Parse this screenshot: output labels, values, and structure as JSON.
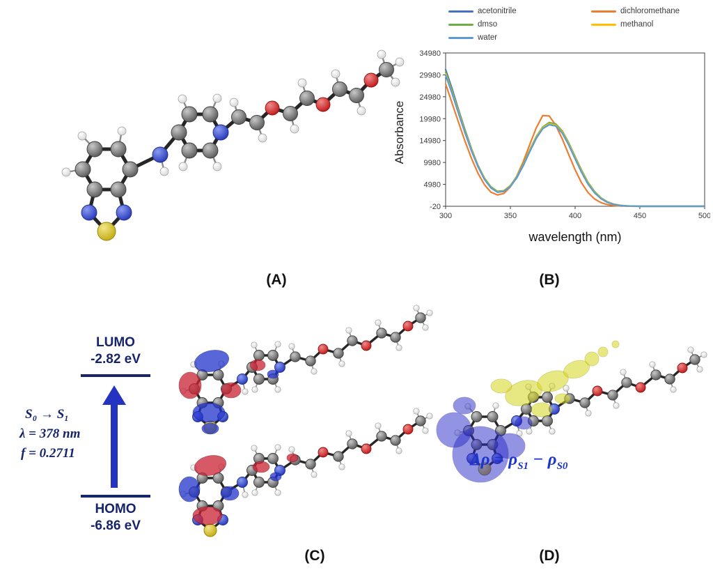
{
  "colors": {
    "carbon": "#707070",
    "hydrogen": "#f5f5f5",
    "nitrogen": "#3a52cc",
    "oxygen": "#cf2020",
    "sulfur": "#d8c21a",
    "navy": "#16246b",
    "arrow": "#2433c0",
    "lobe-red": "#cc2233",
    "lobe-blue": "#2233cc",
    "blob-blue": "#2a2ac8",
    "blob-yellow": "#d6d61e",
    "formula": "#1b35cc"
  },
  "panels": {
    "a": {
      "label": "(A)"
    },
    "b": {
      "label": "(B)"
    },
    "c": {
      "label": "(C)"
    },
    "d": {
      "label": "(D)"
    }
  },
  "chart_data": {
    "type": "line",
    "title": "",
    "xlabel": "wavelength (nm)",
    "ylabel": "Absorbance",
    "xlim": [
      300,
      500
    ],
    "ylim": [
      -20,
      34980
    ],
    "xticks": [
      300,
      350,
      400,
      450,
      500
    ],
    "yticks": [
      34980,
      29980,
      24980,
      19980,
      14980,
      9980,
      4980,
      -20
    ],
    "legend_position": "top",
    "grid": false,
    "x": [
      300,
      305,
      310,
      315,
      320,
      325,
      330,
      335,
      340,
      345,
      350,
      355,
      360,
      365,
      370,
      375,
      380,
      385,
      390,
      395,
      400,
      405,
      410,
      415,
      420,
      425,
      430,
      435,
      440,
      445,
      450,
      455,
      460,
      465,
      470,
      475,
      480,
      485,
      490,
      495,
      500
    ],
    "series": [
      {
        "name": "acetonitrile",
        "color": "#4472c4",
        "values": [
          31200,
          26800,
          22000,
          17400,
          13100,
          9300,
          6300,
          4300,
          3300,
          3400,
          4500,
          6500,
          9300,
          12500,
          15500,
          17800,
          18800,
          18500,
          16900,
          14200,
          11000,
          7900,
          5200,
          3200,
          1800,
          900,
          420,
          170,
          60,
          10,
          -20,
          -20,
          -20,
          -20,
          -20,
          -20,
          -20,
          -20,
          -20,
          -20,
          -20
        ]
      },
      {
        "name": "dichloromethane",
        "color": "#ed7d31",
        "values": [
          27900,
          23500,
          19100,
          14800,
          10900,
          7500,
          4900,
          3200,
          2550,
          2900,
          4400,
          6900,
          10200,
          14100,
          17900,
          20700,
          20600,
          18500,
          15400,
          11800,
          8300,
          5300,
          3100,
          1650,
          800,
          360,
          140,
          45,
          5,
          -20,
          -20,
          -20,
          -20,
          -20,
          -20,
          -20,
          -20,
          -20,
          -20,
          -20,
          -20
        ]
      },
      {
        "name": "dmso",
        "color": "#70ad47",
        "values": [
          30600,
          26300,
          21700,
          17200,
          13000,
          9300,
          6400,
          4400,
          3400,
          3550,
          4700,
          6800,
          9600,
          12900,
          15900,
          18100,
          19100,
          18800,
          17200,
          14500,
          11300,
          8200,
          5400,
          3350,
          1900,
          980,
          460,
          190,
          70,
          15,
          -20,
          -20,
          -20,
          -20,
          -20,
          -20,
          -20,
          -20,
          -20,
          -20,
          -20
        ]
      },
      {
        "name": "methanol",
        "color": "#ffc000",
        "values": [
          30200,
          25900,
          21400,
          16900,
          12800,
          9100,
          6200,
          4200,
          3250,
          3400,
          4600,
          6700,
          9400,
          12700,
          15700,
          17900,
          18800,
          18500,
          16900,
          14200,
          11000,
          7900,
          5150,
          3150,
          1780,
          900,
          420,
          165,
          55,
          8,
          -20,
          -20,
          -20,
          -20,
          -20,
          -20,
          -20,
          -20,
          -20,
          -20,
          -20
        ]
      },
      {
        "name": "water",
        "color": "#5b9bd5",
        "values": [
          29900,
          25700,
          21100,
          16700,
          12600,
          9000,
          6100,
          4150,
          3200,
          3350,
          4500,
          6600,
          9300,
          12500,
          15500,
          17700,
          18600,
          18300,
          16700,
          14000,
          10800,
          7700,
          5000,
          3050,
          1700,
          850,
          390,
          150,
          50,
          5,
          -20,
          -20,
          -20,
          -20,
          -20,
          -20,
          -20,
          -20,
          -20,
          -20,
          -20
        ]
      }
    ]
  },
  "energy_diagram": {
    "lumo_label": "LUMO",
    "lumo_energy": "-2.82 eV",
    "homo_label": "HOMO",
    "homo_energy": "-6.86 eV",
    "transition": "S₀ → S₁",
    "wavelength": "λ = 378 nm",
    "oscillator_strength": "f = 0.2711"
  },
  "density_formula": {
    "lead": "Δρ = ρ",
    "sub1": "S1",
    "mid": " − ρ",
    "sub2": "S0"
  }
}
